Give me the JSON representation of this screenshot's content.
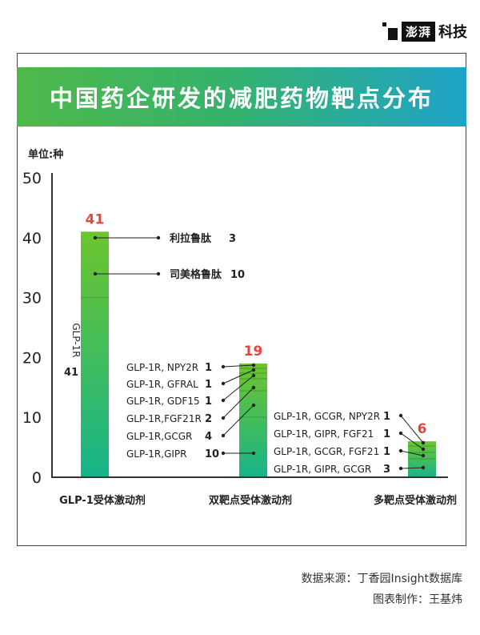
{
  "header": {
    "brand": "澎湃",
    "section": "科技"
  },
  "chart_data": {
    "type": "bar",
    "title": "中国药企研发的减肥药物靶点分布",
    "unit_label": "单位:种",
    "ylim": [
      0,
      50
    ],
    "yticks": [
      0,
      10,
      20,
      30,
      40,
      50
    ],
    "categories": [
      "GLP-1受体激动剂",
      "双靶点受体激动剂",
      "多靶点受体激动剂"
    ],
    "values": [
      41,
      19,
      6
    ],
    "colors": {
      "bar_top": "#6dc52e",
      "bar_bottom": "#17b48a",
      "value_label": "#e8453c"
    },
    "breakdown": [
      {
        "category": "GLP-1受体激动剂",
        "vertical_label": "GLP-1R",
        "vertical_value": 41,
        "items": [
          {
            "label": "利拉鲁肽",
            "value": 3
          },
          {
            "label": "司美格鲁肽",
            "value": 10
          }
        ]
      },
      {
        "category": "双靶点受体激动剂",
        "items": [
          {
            "label": "GLP-1R, NPY2R",
            "value": 1
          },
          {
            "label": "GLP-1R, GFRAL",
            "value": 1
          },
          {
            "label": "GLP-1R, GDF15",
            "value": 1
          },
          {
            "label": "GLP-1R,FGF21R",
            "value": 2
          },
          {
            "label": "GLP-1R,GCGR",
            "value": 4
          },
          {
            "label": "GLP-1R,GIPR",
            "value": 10
          }
        ]
      },
      {
        "category": "多靶点受体激动剂",
        "items": [
          {
            "label": "GLP-1R, GCGR, NPY2R",
            "value": 1
          },
          {
            "label": "GLP-1R, GIPR, FGF21",
            "value": 1
          },
          {
            "label": "GLP-1R, GCGR, FGF21",
            "value": 1
          },
          {
            "label": "GLP-1R, GIPR, GCGR",
            "value": 3
          }
        ]
      }
    ]
  },
  "footer": {
    "source": "数据来源：丁香园Insight数据库",
    "credit": "图表制作：王基炜"
  }
}
